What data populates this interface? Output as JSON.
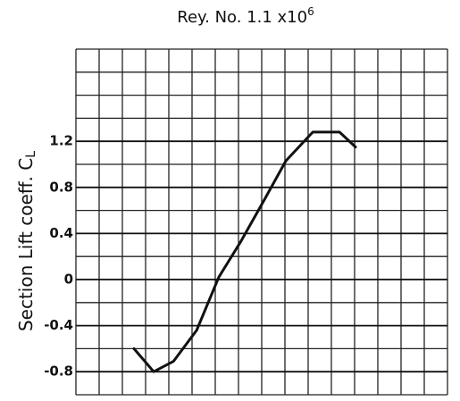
{
  "chart_data": {
    "type": "line",
    "title": "Rey. No. 1.1 x10",
    "title_exponent": "6",
    "ylabel": "Section Lift coeff. C",
    "ylabel_subscript": "L",
    "x": [
      2.5,
      3.35,
      4.2,
      5.2,
      6.15,
      7.1,
      8.08,
      9.04,
      10.2,
      11.35,
      12.04
    ],
    "xlim": [
      0,
      16
    ],
    "series": [
      {
        "color": "#111111",
        "values": [
          -0.6,
          -0.8,
          -0.71,
          -0.44,
          0.02,
          0.33,
          0.68,
          1.03,
          1.28,
          1.28,
          1.15
        ]
      }
    ],
    "ylim": [
      -1,
      2
    ],
    "yticks": [
      1.2,
      0.8,
      0.4,
      0,
      -0.4,
      -0.8
    ],
    "grid": true
  }
}
